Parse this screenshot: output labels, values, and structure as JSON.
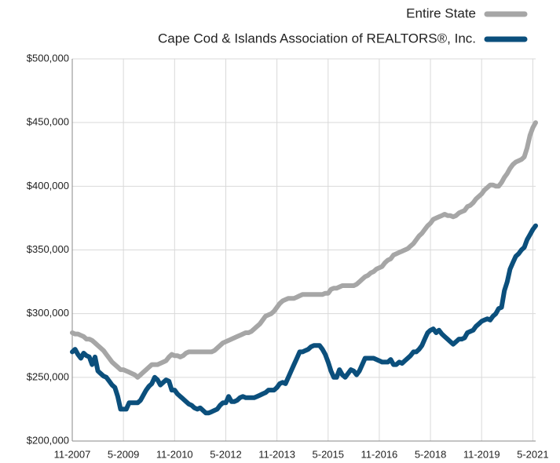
{
  "chart_data": {
    "type": "line",
    "legend": "top-right",
    "grid": true,
    "categories": [
      "11-2007",
      null,
      null,
      null,
      null,
      null,
      null,
      null,
      null,
      null,
      null,
      null,
      null,
      null,
      null,
      null,
      null,
      null,
      "5-2009",
      null,
      null,
      null,
      null,
      null,
      null,
      null,
      null,
      null,
      null,
      null,
      null,
      null,
      null,
      null,
      null,
      null,
      "11-2010",
      null,
      null,
      null,
      null,
      null,
      null,
      null,
      null,
      null,
      null,
      null,
      null,
      null,
      null,
      null,
      null,
      null,
      "5-2012",
      null,
      null,
      null,
      null,
      null,
      null,
      null,
      null,
      null,
      null,
      null,
      null,
      null,
      null,
      null,
      null,
      null,
      "11-2013",
      null,
      null,
      null,
      null,
      null,
      null,
      null,
      null,
      null,
      null,
      null,
      null,
      null,
      null,
      null,
      null,
      null,
      "5-2015",
      null,
      null,
      null,
      null,
      null,
      null,
      null,
      null,
      null,
      null,
      null,
      null,
      null,
      null,
      null,
      null,
      null,
      "11-2016",
      null,
      null,
      null,
      null,
      null,
      null,
      null,
      null,
      null,
      null,
      null,
      null,
      null,
      null,
      null,
      null,
      null,
      "5-2018",
      null,
      null,
      null,
      null,
      null,
      null,
      null,
      null,
      null,
      null,
      null,
      null,
      null,
      null,
      null,
      null,
      null,
      "11-2019",
      null,
      null,
      null,
      null,
      null,
      null,
      null,
      null,
      null,
      null,
      null,
      null,
      null,
      null,
      null,
      null,
      null,
      "5-2021",
      null
    ],
    "series": [
      {
        "name": "Entire State",
        "color": "#a6a6a6",
        "values": [
          285000,
          284000,
          284000,
          283000,
          282000,
          280000,
          280000,
          279000,
          277000,
          275000,
          273000,
          271000,
          268000,
          265000,
          262000,
          260000,
          258000,
          256000,
          256000,
          255000,
          254000,
          253000,
          252000,
          250000,
          252000,
          254000,
          256000,
          258000,
          260000,
          260000,
          260000,
          261000,
          262000,
          263000,
          266000,
          268000,
          267000,
          267000,
          266000,
          267000,
          269000,
          270000,
          270000,
          270000,
          270000,
          270000,
          270000,
          270000,
          270000,
          270000,
          271000,
          273000,
          275000,
          277000,
          278000,
          279000,
          280000,
          281000,
          282000,
          283000,
          284000,
          285000,
          285000,
          286000,
          288000,
          290000,
          292000,
          295000,
          298000,
          299000,
          300000,
          302000,
          305000,
          308000,
          310000,
          311000,
          312000,
          312000,
          312000,
          313000,
          314000,
          315000,
          315000,
          315000,
          315000,
          315000,
          315000,
          315000,
          315000,
          316000,
          316000,
          319000,
          320000,
          320000,
          321000,
          322000,
          322000,
          322000,
          322000,
          322000,
          323000,
          325000,
          327000,
          329000,
          330000,
          332000,
          333000,
          335000,
          336000,
          337000,
          340000,
          342000,
          343000,
          346000,
          347000,
          348000,
          349000,
          350000,
          351000,
          353000,
          355000,
          358000,
          361000,
          363000,
          366000,
          369000,
          371000,
          374000,
          375000,
          376000,
          377000,
          378000,
          377000,
          377000,
          376000,
          377000,
          379000,
          380000,
          381000,
          384000,
          385000,
          387000,
          390000,
          392000,
          394000,
          397000,
          399000,
          401000,
          401000,
          400000,
          400000,
          403000,
          407000,
          410000,
          414000,
          417000,
          419000,
          420000,
          421000,
          423000,
          430000,
          440000,
          446000,
          450000
        ]
      },
      {
        "name": "Cape Cod & Islands Association of REALTORS®, Inc.",
        "color": "#0b4f7c",
        "values": [
          270000,
          272000,
          268000,
          265000,
          269000,
          267000,
          266000,
          260000,
          266000,
          255000,
          253000,
          251000,
          250000,
          247000,
          244000,
          242000,
          235000,
          225000,
          225000,
          225000,
          230000,
          230000,
          230000,
          230000,
          232000,
          236000,
          240000,
          243000,
          245000,
          250000,
          248000,
          244000,
          246000,
          248000,
          247000,
          240000,
          240000,
          237000,
          235000,
          233000,
          231000,
          229000,
          228000,
          226000,
          225000,
          226000,
          224000,
          222000,
          222000,
          223000,
          224000,
          225000,
          228000,
          230000,
          230000,
          235000,
          231000,
          231000,
          232000,
          234000,
          235000,
          234000,
          234000,
          234000,
          234000,
          235000,
          236000,
          237000,
          238000,
          240000,
          240000,
          240000,
          242000,
          245000,
          246000,
          245000,
          250000,
          255000,
          260000,
          265000,
          270000,
          270000,
          271000,
          272000,
          274000,
          275000,
          275000,
          275000,
          272000,
          268000,
          262000,
          255000,
          250000,
          250000,
          256000,
          252000,
          250000,
          253000,
          256000,
          255000,
          252000,
          255000,
          260000,
          265000,
          265000,
          265000,
          265000,
          264000,
          263000,
          262000,
          262000,
          262000,
          264000,
          260000,
          260000,
          262000,
          261000,
          263000,
          265000,
          267000,
          270000,
          270000,
          272000,
          275000,
          280000,
          285000,
          287000,
          288000,
          285000,
          287000,
          284000,
          282000,
          280000,
          278000,
          276000,
          278000,
          280000,
          280000,
          281000,
          285000,
          286000,
          287000,
          290000,
          292000,
          294000,
          295000,
          296000,
          295000,
          298000,
          300000,
          304000,
          305000,
          318000,
          325000,
          335000,
          340000,
          345000,
          347000,
          350000,
          352000,
          358000,
          362000,
          366000,
          369000
        ]
      }
    ],
    "ylim": [
      200000,
      500000
    ],
    "yticks": [
      {
        "value": 200000,
        "label": "$200,000"
      },
      {
        "value": 250000,
        "label": "$250,000"
      },
      {
        "value": 300000,
        "label": "$300,000"
      },
      {
        "value": 350000,
        "label": "$350,000"
      },
      {
        "value": 400000,
        "label": "$400,000"
      },
      {
        "value": 450000,
        "label": "$450,000"
      },
      {
        "value": 500000,
        "label": "$500,000"
      }
    ]
  }
}
